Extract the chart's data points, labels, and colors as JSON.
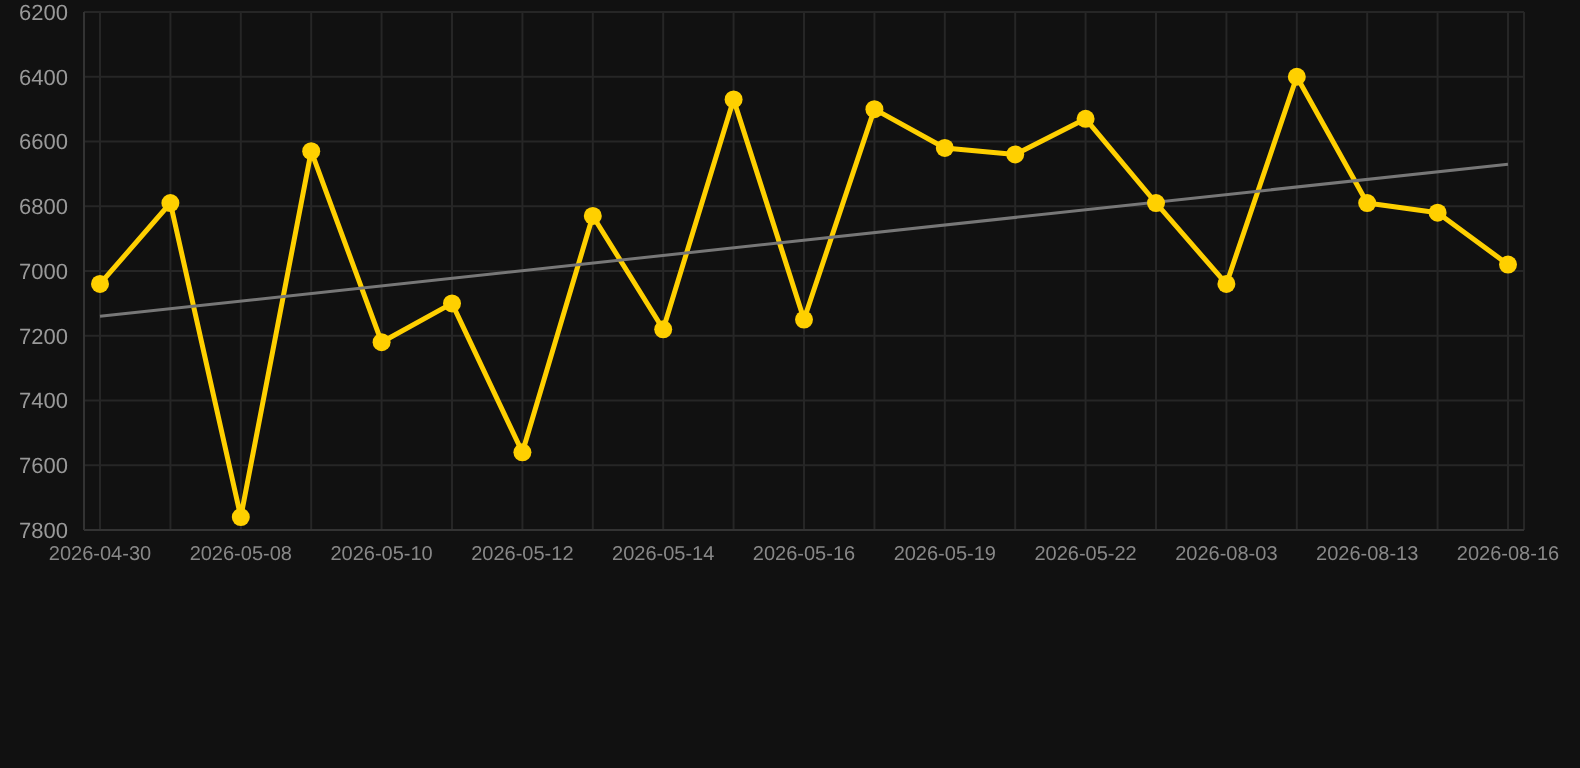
{
  "chart_data": {
    "type": "line",
    "categories": [
      "2026-04-30",
      null,
      "2026-05-08",
      null,
      "2026-05-10",
      null,
      "2026-05-12",
      null,
      "2026-05-14",
      null,
      "2026-05-16",
      null,
      "2026-05-19",
      null,
      "2026-05-22",
      null,
      "2026-08-03",
      null,
      "2026-08-13",
      null,
      "2026-08-16"
    ],
    "series": [
      {
        "color": "#ffd000",
        "values": [
          7040,
          6790,
          7760,
          6630,
          7220,
          7100,
          7560,
          6830,
          7180,
          6470,
          7150,
          6500,
          6620,
          6640,
          6530,
          6790,
          7040,
          6400,
          6790,
          6820,
          6980
        ]
      },
      {
        "type": "line",
        "color": "#777777",
        "values": [
          7140,
          null,
          null,
          null,
          null,
          null,
          null,
          null,
          null,
          null,
          null,
          null,
          null,
          null,
          null,
          null,
          null,
          null,
          null,
          null,
          6670
        ],
        "marker": "none"
      }
    ],
    "ylim": [
      7800,
      6200
    ],
    "yticks": [
      6200,
      6400,
      6600,
      6800,
      7000,
      7200,
      7400,
      7600,
      7800
    ],
    "grid": true,
    "marker": "circle",
    "line_style": "solid"
  }
}
